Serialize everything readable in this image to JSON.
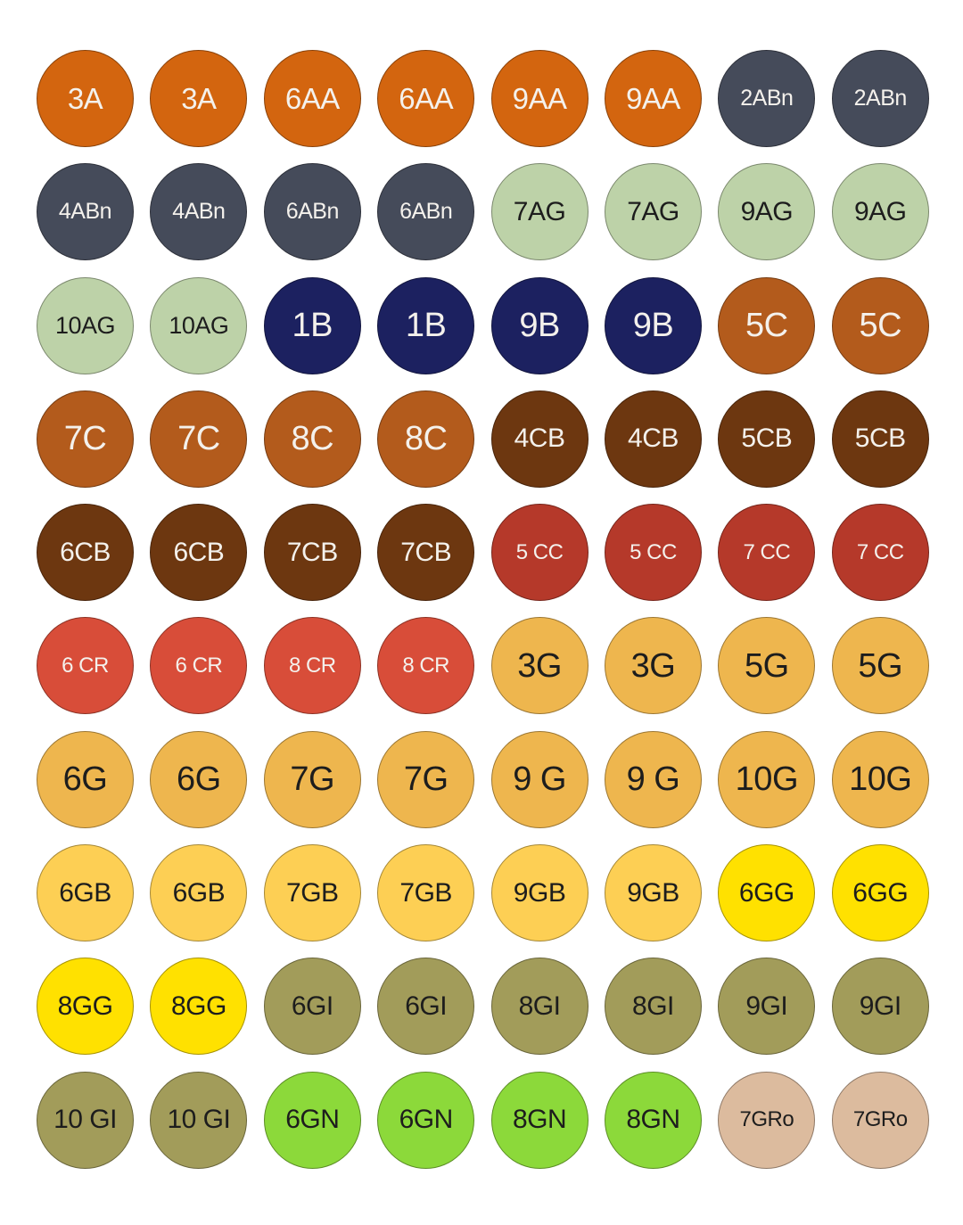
{
  "colors": {
    "orange": "#D3650F",
    "slate": "#454B5A",
    "sage": "#BDD2A8",
    "navy": "#1C2160",
    "rust": "#B35B1C",
    "brown": "#6D3710",
    "red_brick": "#B5392A",
    "red": "#D84D39",
    "gold": "#EEB64E",
    "pale_gold": "#FDCF54",
    "yellow": "#FFE100",
    "olive": "#A29C5A",
    "green": "#8CD93A",
    "tan": "#DCBB9E"
  },
  "labels": [
    "3A",
    "3A",
    "6AA",
    "6AA",
    "9AA",
    "9AA",
    "2ABn",
    "2ABn",
    "4ABn",
    "4ABn",
    "6ABn",
    "6ABn",
    "7AG",
    "7AG",
    "9AG",
    "9AG",
    "10AG",
    "10AG",
    "1B",
    "1B",
    "9B",
    "9B",
    "5C",
    "5C",
    "7C",
    "7C",
    "8C",
    "8C",
    "4CB",
    "4CB",
    "5CB",
    "5CB",
    "6CB",
    "6CB",
    "7CB",
    "7CB",
    "5 CC",
    "5 CC",
    "7 CC",
    "7 CC",
    "6 CR",
    "6 CR",
    "8 CR",
    "8 CR",
    "3G",
    "3G",
    "5G",
    "5G",
    "6G",
    "6G",
    "7G",
    "7G",
    "9 G",
    "9 G",
    "10G",
    "10G",
    "6GB",
    "6GB",
    "7GB",
    "7GB",
    "9GB",
    "9GB",
    "6GG",
    "6GG",
    "8GG",
    "8GG",
    "6GI",
    "6GI",
    "8GI",
    "8GI",
    "9GI",
    "9GI",
    "10 GI",
    "10 GI",
    "6GN",
    "6GN",
    "8GN",
    "8GN",
    "7GRo",
    "7GRo"
  ]
}
